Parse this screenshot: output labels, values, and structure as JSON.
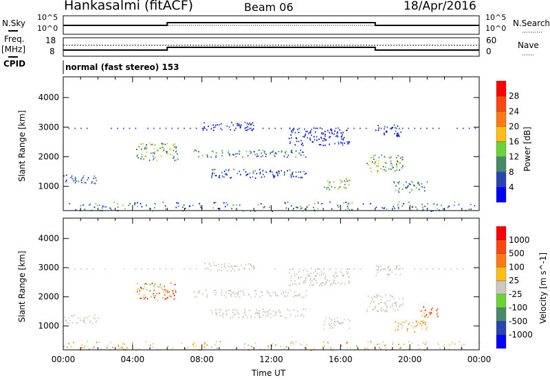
{
  "header": {
    "station": "Hankasalmi (fitACF)",
    "beam": "Beam 06",
    "date": "18/Apr/2016"
  },
  "top_panels": {
    "nsky_label": "N.Sky",
    "nsky_ticks": [
      "10^5",
      "10^0"
    ],
    "nsearch_label": "N.Search",
    "nsearch_ticks": [
      "10^5",
      "10^0"
    ],
    "freq_label": "Freq.",
    "freq_unit": "[MHz]",
    "freq_ticks": [
      "18",
      "8"
    ],
    "nave_label": "Nave",
    "nave_ticks": [
      "60",
      "0"
    ],
    "cpid_label": "CPID",
    "cpid_value": "normal (fast stereo) 153"
  },
  "chart_data": [
    {
      "type": "heatmap",
      "title": "Power",
      "ylabel": "Slant Range [km]",
      "xlabel": "",
      "ylim": [
        180,
        4700
      ],
      "xlim": [
        0,
        24
      ],
      "yticks": [
        "1000",
        "2000",
        "3000",
        "4000"
      ],
      "colorbar": {
        "label": "Power [dB]",
        "ticks": [
          "4",
          "8",
          "12",
          "16",
          "20",
          "24",
          "28"
        ],
        "colors": [
          "#0000ff",
          "#2646b4",
          "#468a6a",
          "#6cd23a",
          "#ffbe14",
          "#ff7814",
          "#ff4610",
          "#ff0000"
        ]
      },
      "echo_regions": [
        {
          "t": [
            0,
            2
          ],
          "r": [
            1100,
            1400
          ],
          "level": [
            0,
            2
          ]
        },
        {
          "t": [
            4.2,
            6.6
          ],
          "r": [
            1900,
            2500
          ],
          "level": [
            1,
            4
          ]
        },
        {
          "t": [
            7.5,
            14
          ],
          "r": [
            2000,
            2250
          ],
          "level": [
            1,
            3
          ]
        },
        {
          "t": [
            8.5,
            14
          ],
          "r": [
            1300,
            1600
          ],
          "level": [
            0,
            2
          ]
        },
        {
          "t": [
            8,
            11
          ],
          "r": [
            2900,
            3200
          ],
          "level": [
            0,
            1
          ]
        },
        {
          "t": [
            13,
            16.5
          ],
          "r": [
            2400,
            3000
          ],
          "level": [
            0,
            1
          ]
        },
        {
          "t": [
            15,
            16.5
          ],
          "r": [
            900,
            1300
          ],
          "level": [
            2,
            4
          ]
        },
        {
          "t": [
            17.5,
            19.6
          ],
          "r": [
            1500,
            2100
          ],
          "level": [
            1,
            4
          ]
        },
        {
          "t": [
            18,
            19.5
          ],
          "r": [
            2700,
            3100
          ],
          "level": [
            0,
            1
          ]
        },
        {
          "t": [
            19,
            21
          ],
          "r": [
            800,
            1200
          ],
          "level": [
            1,
            3
          ]
        },
        {
          "t": [
            0,
            24
          ],
          "r": [
            180,
            500
          ],
          "level": [
            0,
            3
          ]
        }
      ]
    },
    {
      "type": "heatmap",
      "title": "Velocity",
      "ylabel": "Slant Range [km]",
      "xlabel": "Time UT",
      "ylim": [
        180,
        4700
      ],
      "xlim": [
        0,
        24
      ],
      "xticks": [
        "00:00",
        "04:00",
        "08:00",
        "12:00",
        "16:00",
        "20:00",
        "00:00"
      ],
      "yticks": [
        "1000",
        "2000",
        "3000",
        "4000"
      ],
      "colorbar": {
        "label": "Velocity [m s^-1]",
        "ticks": [
          "1000",
          "500",
          "100",
          "25",
          "-25",
          "-100",
          "-500",
          "-1000"
        ],
        "colors": [
          "#0000ff",
          "#2646b4",
          "#468a6a",
          "#6cd23a",
          "#c8c8c0",
          "#ffbe14",
          "#ff7814",
          "#ff4610",
          "#ff0000"
        ]
      },
      "echo_regions": [
        {
          "t": [
            0,
            2
          ],
          "r": [
            1100,
            1400
          ],
          "level": [
            4,
            4
          ]
        },
        {
          "t": [
            4.2,
            6.6
          ],
          "r": [
            1900,
            2500
          ],
          "level": [
            3,
            8
          ]
        },
        {
          "t": [
            7.5,
            14
          ],
          "r": [
            2000,
            2250
          ],
          "level": [
            4,
            4
          ]
        },
        {
          "t": [
            8.5,
            14
          ],
          "r": [
            1300,
            1600
          ],
          "level": [
            4,
            4
          ]
        },
        {
          "t": [
            8,
            11
          ],
          "r": [
            2900,
            3200
          ],
          "level": [
            4,
            4
          ]
        },
        {
          "t": [
            13,
            16.5
          ],
          "r": [
            2400,
            3000
          ],
          "level": [
            4,
            4
          ]
        },
        {
          "t": [
            15,
            16.5
          ],
          "r": [
            900,
            1300
          ],
          "level": [
            4,
            4
          ]
        },
        {
          "t": [
            17.5,
            19.6
          ],
          "r": [
            1500,
            2100
          ],
          "level": [
            4,
            4
          ]
        },
        {
          "t": [
            18,
            19.5
          ],
          "r": [
            2700,
            3100
          ],
          "level": [
            4,
            4
          ]
        },
        {
          "t": [
            19,
            21
          ],
          "r": [
            800,
            1200
          ],
          "level": [
            4,
            6
          ]
        },
        {
          "t": [
            20.5,
            21.6
          ],
          "r": [
            1300,
            1700
          ],
          "level": [
            5,
            8
          ]
        },
        {
          "t": [
            0,
            24
          ],
          "r": [
            180,
            500
          ],
          "level": [
            4,
            6
          ]
        }
      ]
    }
  ]
}
